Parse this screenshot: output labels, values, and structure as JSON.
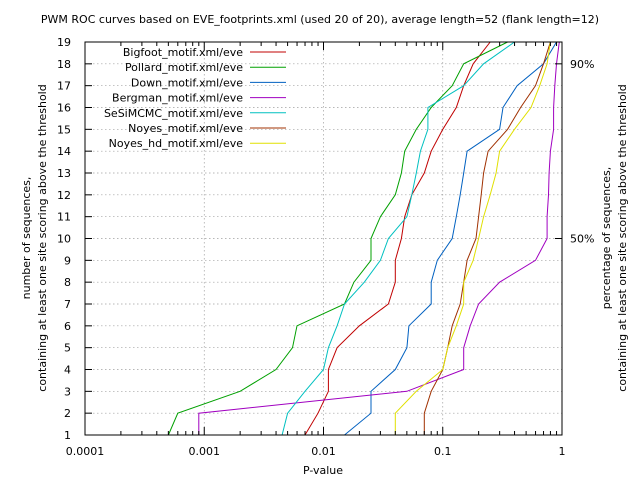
{
  "chart_data": {
    "type": "line",
    "title": "PWM ROC curves based on EVE_footprints.xml (used 20 of 20), average length=52 (flank length=12)",
    "xlabel": "P-value",
    "ylabel": [
      "number of sequences,",
      "containing at least one site scoring above the threshold"
    ],
    "y2label": [
      "percentage of sequences,",
      "containing at least one site scoring above the threshold"
    ],
    "x_scale": "log",
    "xlim": [
      0.0001,
      1
    ],
    "ylim": [
      1,
      19
    ],
    "grid": true,
    "legend_position": "top-left",
    "x_ticks": [
      {
        "value": 0.0001,
        "label": "0.0001"
      },
      {
        "value": 0.001,
        "label": "0.001"
      },
      {
        "value": 0.01,
        "label": "0.01"
      },
      {
        "value": 0.1,
        "label": "0.1"
      },
      {
        "value": 1,
        "label": "1"
      }
    ],
    "y_ticks": [
      {
        "value": 1,
        "label": "1"
      },
      {
        "value": 2,
        "label": "2"
      },
      {
        "value": 3,
        "label": "3"
      },
      {
        "value": 4,
        "label": "4"
      },
      {
        "value": 5,
        "label": "5"
      },
      {
        "value": 6,
        "label": "6"
      },
      {
        "value": 7,
        "label": "7"
      },
      {
        "value": 8,
        "label": "8"
      },
      {
        "value": 9,
        "label": "9"
      },
      {
        "value": 10,
        "label": "10"
      },
      {
        "value": 11,
        "label": "11"
      },
      {
        "value": 12,
        "label": "12"
      },
      {
        "value": 13,
        "label": "13"
      },
      {
        "value": 14,
        "label": "14"
      },
      {
        "value": 15,
        "label": "15"
      },
      {
        "value": 16,
        "label": "16"
      },
      {
        "value": 17,
        "label": "17"
      },
      {
        "value": 18,
        "label": "18"
      },
      {
        "value": 19,
        "label": "19"
      }
    ],
    "y2_ticks": [
      {
        "value": 10,
        "label": "50%"
      },
      {
        "value": 18,
        "label": "90%"
      }
    ],
    "series": [
      {
        "name": "Bigfoot_motif.xml/eve",
        "color": "#c00000",
        "points": [
          [
            0.007,
            1
          ],
          [
            0.009,
            2
          ],
          [
            0.011,
            3
          ],
          [
            0.011,
            4
          ],
          [
            0.013,
            5
          ],
          [
            0.02,
            6
          ],
          [
            0.035,
            7
          ],
          [
            0.04,
            8
          ],
          [
            0.04,
            9
          ],
          [
            0.045,
            10
          ],
          [
            0.048,
            11
          ],
          [
            0.055,
            12
          ],
          [
            0.07,
            13
          ],
          [
            0.08,
            14
          ],
          [
            0.1,
            15
          ],
          [
            0.13,
            16
          ],
          [
            0.15,
            17
          ],
          [
            0.18,
            18
          ],
          [
            0.25,
            19
          ]
        ]
      },
      {
        "name": "Pollard_motif.xml/eve",
        "color": "#00a000",
        "points": [
          [
            0.0005,
            1
          ],
          [
            0.0006,
            2
          ],
          [
            0.002,
            3
          ],
          [
            0.004,
            4
          ],
          [
            0.0055,
            5
          ],
          [
            0.006,
            6
          ],
          [
            0.015,
            7
          ],
          [
            0.018,
            8
          ],
          [
            0.025,
            9
          ],
          [
            0.025,
            10
          ],
          [
            0.03,
            11
          ],
          [
            0.04,
            12
          ],
          [
            0.045,
            13
          ],
          [
            0.048,
            14
          ],
          [
            0.06,
            15
          ],
          [
            0.08,
            16
          ],
          [
            0.12,
            17
          ],
          [
            0.15,
            18
          ],
          [
            0.35,
            19
          ]
        ]
      },
      {
        "name": "Down_motif.xml/eve",
        "color": "#0060c0",
        "points": [
          [
            0.015,
            1
          ],
          [
            0.025,
            2
          ],
          [
            0.025,
            3
          ],
          [
            0.04,
            4
          ],
          [
            0.05,
            5
          ],
          [
            0.052,
            6
          ],
          [
            0.08,
            7
          ],
          [
            0.08,
            8
          ],
          [
            0.09,
            9
          ],
          [
            0.12,
            10
          ],
          [
            0.13,
            11
          ],
          [
            0.14,
            12
          ],
          [
            0.15,
            13
          ],
          [
            0.16,
            14
          ],
          [
            0.3,
            15
          ],
          [
            0.32,
            16
          ],
          [
            0.42,
            17
          ],
          [
            0.7,
            18
          ],
          [
            0.9,
            19
          ]
        ]
      },
      {
        "name": "Bergman_motif.xml/eve",
        "color": "#a000c0",
        "points": [
          [
            0.0009,
            1
          ],
          [
            0.0009,
            2
          ],
          [
            0.05,
            3
          ],
          [
            0.15,
            4
          ],
          [
            0.15,
            5
          ],
          [
            0.17,
            6
          ],
          [
            0.2,
            7
          ],
          [
            0.3,
            8
          ],
          [
            0.6,
            9
          ],
          [
            0.75,
            10
          ],
          [
            0.75,
            11
          ],
          [
            0.77,
            12
          ],
          [
            0.78,
            13
          ],
          [
            0.8,
            14
          ],
          [
            0.85,
            15
          ],
          [
            0.85,
            16
          ],
          [
            0.87,
            17
          ],
          [
            0.9,
            18
          ],
          [
            0.95,
            19
          ]
        ]
      },
      {
        "name": "SeSiMCMC_motif.xml/eve",
        "color": "#00c0c0",
        "points": [
          [
            0.0045,
            1
          ],
          [
            0.005,
            2
          ],
          [
            0.007,
            3
          ],
          [
            0.01,
            4
          ],
          [
            0.011,
            5
          ],
          [
            0.013,
            6
          ],
          [
            0.015,
            7
          ],
          [
            0.022,
            8
          ],
          [
            0.03,
            9
          ],
          [
            0.035,
            10
          ],
          [
            0.05,
            11
          ],
          [
            0.055,
            12
          ],
          [
            0.06,
            13
          ],
          [
            0.065,
            14
          ],
          [
            0.075,
            15
          ],
          [
            0.075,
            16
          ],
          [
            0.15,
            17
          ],
          [
            0.22,
            18
          ],
          [
            0.4,
            19
          ]
        ]
      },
      {
        "name": "Noyes_motif.xml/eve",
        "color": "#a03000",
        "points": [
          [
            0.07,
            1
          ],
          [
            0.07,
            2
          ],
          [
            0.08,
            3
          ],
          [
            0.1,
            4
          ],
          [
            0.11,
            5
          ],
          [
            0.12,
            6
          ],
          [
            0.14,
            7
          ],
          [
            0.15,
            8
          ],
          [
            0.16,
            9
          ],
          [
            0.19,
            10
          ],
          [
            0.2,
            11
          ],
          [
            0.21,
            12
          ],
          [
            0.22,
            13
          ],
          [
            0.24,
            14
          ],
          [
            0.35,
            15
          ],
          [
            0.45,
            16
          ],
          [
            0.6,
            17
          ],
          [
            0.7,
            18
          ],
          [
            0.8,
            19
          ]
        ]
      },
      {
        "name": "Noyes_hd_motif.xml/eve",
        "color": "#e0e000",
        "points": [
          [
            0.04,
            1
          ],
          [
            0.04,
            2
          ],
          [
            0.06,
            3
          ],
          [
            0.1,
            4
          ],
          [
            0.11,
            5
          ],
          [
            0.13,
            6
          ],
          [
            0.15,
            7
          ],
          [
            0.15,
            8
          ],
          [
            0.18,
            9
          ],
          [
            0.2,
            10
          ],
          [
            0.22,
            11
          ],
          [
            0.25,
            12
          ],
          [
            0.28,
            13
          ],
          [
            0.3,
            14
          ],
          [
            0.4,
            15
          ],
          [
            0.55,
            16
          ],
          [
            0.65,
            17
          ],
          [
            0.75,
            18
          ],
          [
            0.8,
            19
          ]
        ]
      }
    ]
  }
}
